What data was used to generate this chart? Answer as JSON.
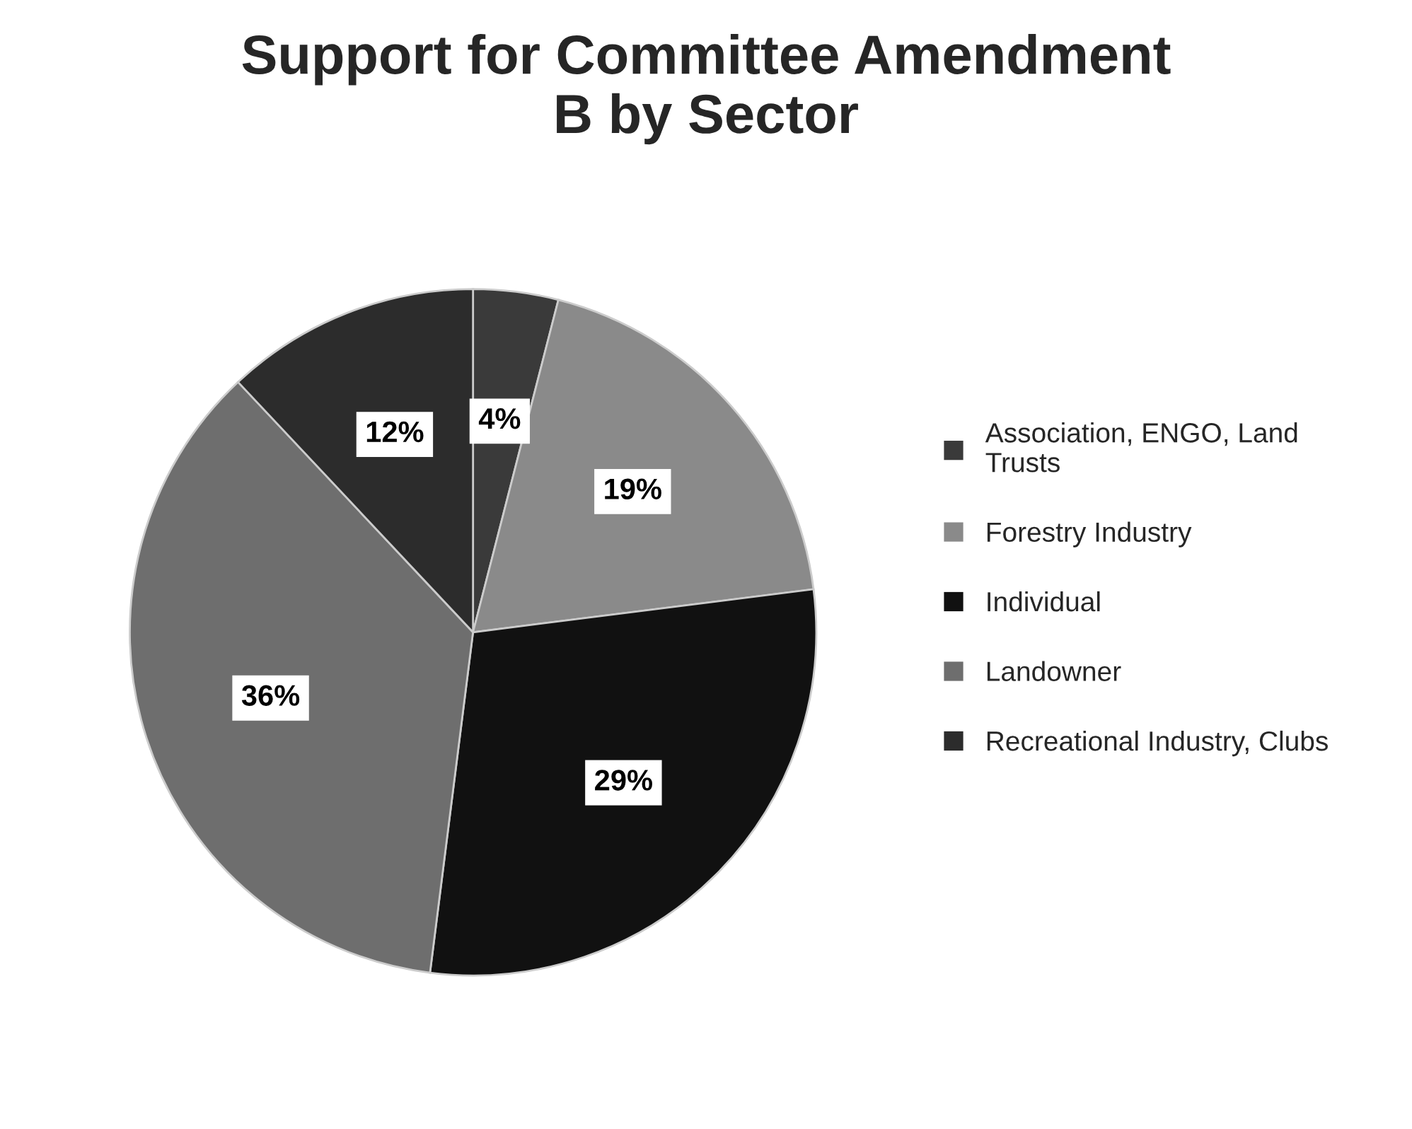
{
  "chart_data": {
    "type": "pie",
    "title": "Support for Committee Amendment\nB by Sector",
    "categories": [
      "Association, ENGO, Land\nTrusts",
      "Forestry Industry",
      "Individual",
      "Landowner",
      "Recreational Industry, Clubs"
    ],
    "values": [
      4,
      19,
      29,
      36,
      12
    ],
    "colors": [
      "#3a3a3a",
      "#8a8a8a",
      "#111111",
      "#6e6e6e",
      "#2c2c2c"
    ],
    "value_labels": [
      "4%",
      "19%",
      "29%",
      "36%",
      "12%"
    ],
    "legend": "right"
  }
}
